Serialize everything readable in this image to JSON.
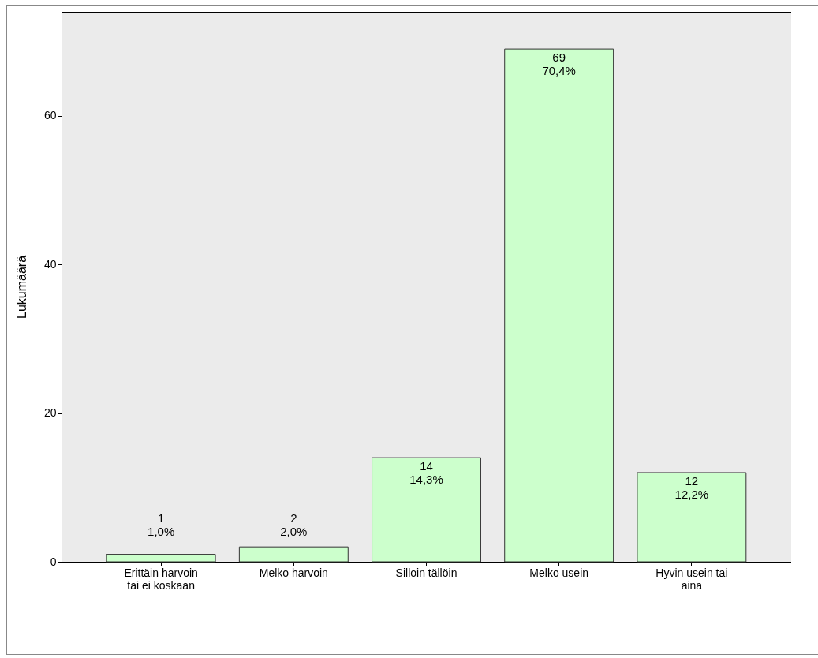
{
  "chart_data": {
    "type": "bar",
    "ylabel": "Lukumäärä",
    "categories": [
      "Erittäin harvoin tai ei koskaan",
      "Melko harvoin",
      "Silloin tällöin",
      "Melko usein",
      "Hyvin usein tai aina"
    ],
    "values": [
      1,
      2,
      14,
      69,
      12
    ],
    "value_labels": [
      "1\n1,0%",
      "2\n2,0%",
      "14\n14,3%",
      "69\n70,4%",
      "12\n12,2%"
    ],
    "color": "#ccffcc",
    "ylim": [
      0,
      74
    ],
    "yticks": [
      0,
      20,
      40,
      60
    ],
    "grid": false
  }
}
